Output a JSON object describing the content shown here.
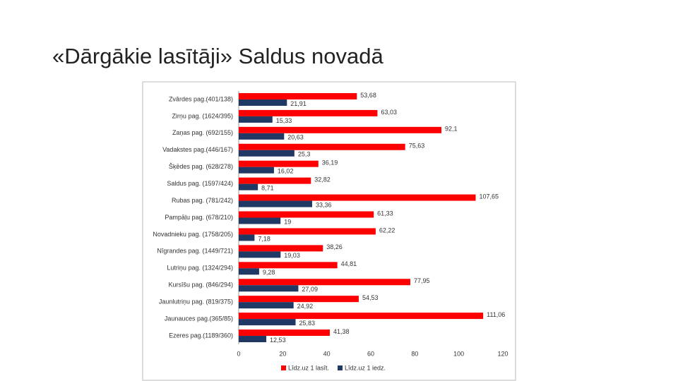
{
  "chart_data": {
    "type": "bar",
    "orientation": "horizontal",
    "title": "«Dārgākie lasītāji» Saldus novadā",
    "categories": [
      "Zvārdes pag.(401/138)",
      "Zirņu pag. (1624/395)",
      "Zaņas pag. (692/155)",
      "Vadakstes pag.(446/167)",
      "Šķēdes pag. (628/278)",
      "Saldus pag. (1597/424)",
      "Rubas pag. (781/242)",
      "Pampāļu pag. (678/210)",
      "Novadnieku pag. (1758/205)",
      "Nīgrandes pag. (1449/721)",
      "Lutriņu pag. (1324/294)",
      "Kursīšu pag. (846/294)",
      "Jaunlutriņu pag. (819/375)",
      "Jaunauces pag.(365/85)",
      "Ezeres pag.(1189/360)"
    ],
    "series": [
      {
        "name": "Līdz.uz 1 lasīt.",
        "color": "#ff0000",
        "values": [
          53.68,
          63.03,
          92.1,
          75.63,
          36.19,
          32.82,
          107.65,
          61.33,
          62.22,
          38.26,
          44.81,
          77.95,
          54.53,
          111.06,
          41.38
        ],
        "value_labels": [
          "53,68",
          "63,03",
          "92,1",
          "75,63",
          "36,19",
          "32,82",
          "107,65",
          "61,33",
          "62,22",
          "38,26",
          "44,81",
          "77,95",
          "54,53",
          "111,06",
          "41,38"
        ]
      },
      {
        "name": "Līdz.uz 1 iedz.",
        "color": "#1f3864",
        "values": [
          21.91,
          15.33,
          20.63,
          25.3,
          16.02,
          8.71,
          33.36,
          19,
          7.18,
          19.03,
          9.28,
          27.09,
          24.92,
          25.83,
          12.53
        ],
        "value_labels": [
          "21,91",
          "15,33",
          "20,63",
          "25,3",
          "16,02",
          "8,71",
          "33,36",
          "19",
          "7,18",
          "19,03",
          "9,28",
          "27,09",
          "24,92",
          "25,83",
          "12,53"
        ]
      }
    ],
    "xlim": [
      0,
      120
    ],
    "xticks": [
      0,
      20,
      40,
      60,
      80,
      100,
      120
    ],
    "legend": "bottom"
  }
}
